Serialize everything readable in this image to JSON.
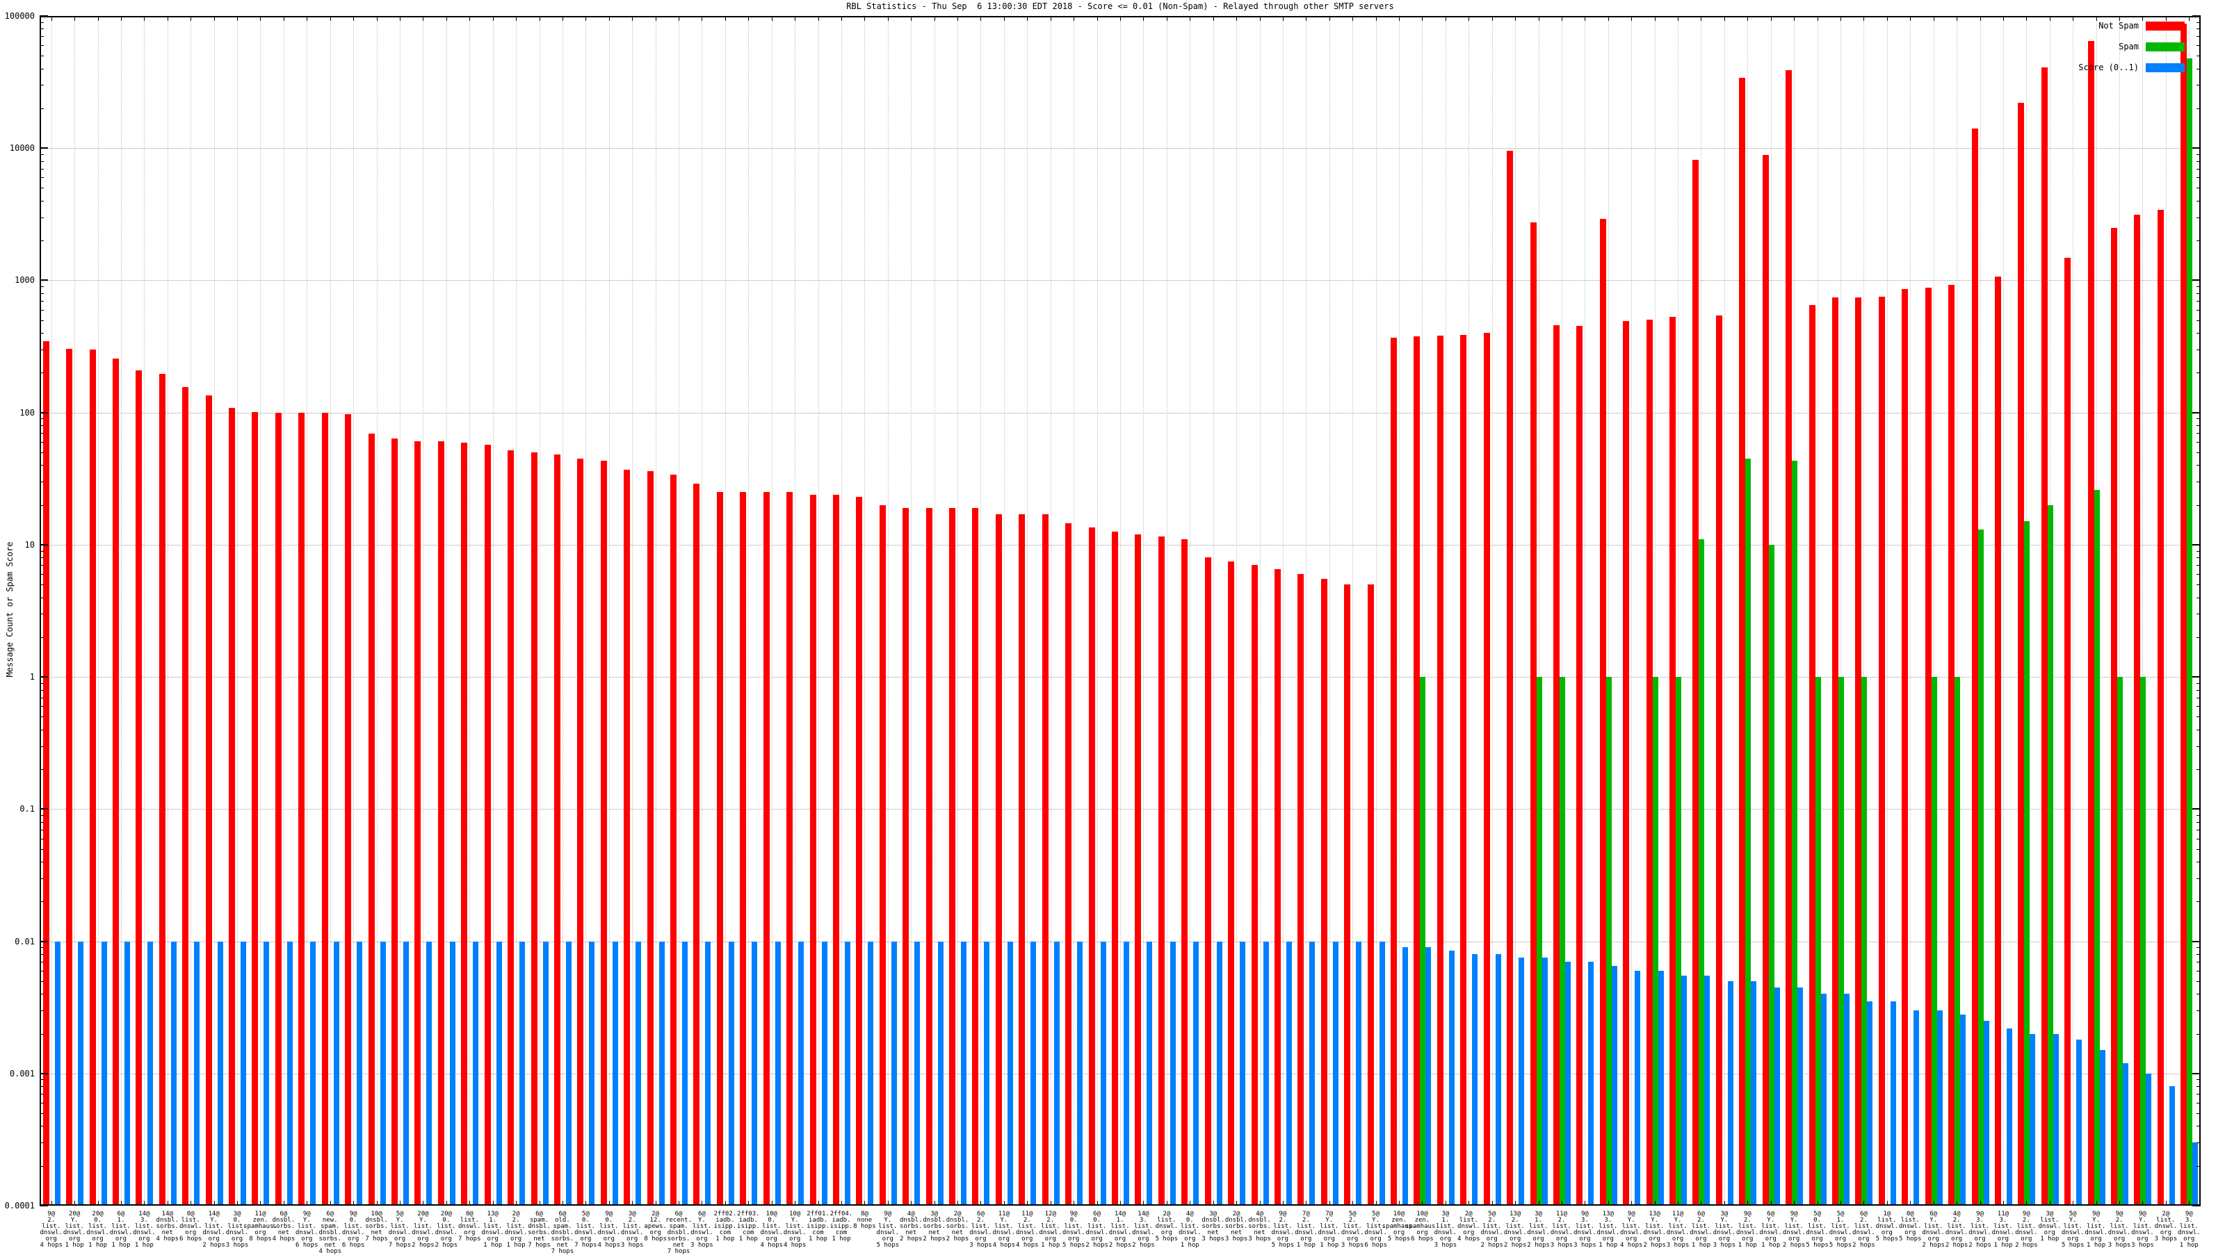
{
  "title": "RBL Statistics - Thu Sep  6 13:00:30 EDT 2018 - Score <= 0.01 (Non-Spam) - Relayed through other SMTP servers",
  "y_axis": {
    "label": "Message Count or Spam Score",
    "ticks": [
      "100000",
      "10000",
      "1000",
      "100",
      "10",
      "1",
      "0.1",
      "0.01",
      "0.001",
      "0.0001"
    ]
  },
  "chart_data": {
    "type": "bar",
    "title": "RBL Statistics - Thu Sep  6 13:00:30 EDT 2018 - Score <= 0.01 (Non-Spam) - Relayed through other SMTP servers",
    "ylabel": "Message Count or Spam Score",
    "y_scale": "log",
    "ylim": [
      0.0001,
      100000
    ],
    "grid": true,
    "legend_position": "top-right",
    "series": [
      {
        "name": "Not Spam",
        "key": "not_spam",
        "color": "#ff0000"
      },
      {
        "name": "Spam",
        "key": "spam",
        "color": "#00b800"
      },
      {
        "name": "Score (0..1)",
        "key": "score",
        "color": "#0080ff"
      }
    ],
    "groups": [
      {
        "label": "9@\n2.\nlist.\ndnswl.\norg\n4 hops",
        "not_spam": 345,
        "spam": null,
        "score": 0.01
      },
      {
        "label": "20@\nY.\nlist.\ndnswl.\norg\n1 hop",
        "not_spam": 302,
        "spam": null,
        "score": 0.01
      },
      {
        "label": "20@\n0.\nlist.\ndnswl.\norg\n1 hop",
        "not_spam": 300,
        "spam": null,
        "score": 0.01
      },
      {
        "label": "6@\n1.\nlist.\ndnswl.\norg\n1 hop",
        "not_spam": 255,
        "spam": null,
        "score": 0.01
      },
      {
        "label": "14@\n3.\nlist.\ndnswl.\norg\n1 hop",
        "not_spam": 208,
        "spam": null,
        "score": 0.01
      },
      {
        "label": "14@\ndnsbl.\nsorbs.\nnet\n4 hops",
        "not_spam": 196,
        "spam": null,
        "score": 0.01
      },
      {
        "label": "0@\nlist.\ndnswl.\norg\n6 hops",
        "not_spam": 156,
        "spam": null,
        "score": 0.01
      },
      {
        "label": "14@\nY.\nlist.\ndnswl.\norg\n2 hops",
        "not_spam": 135,
        "spam": null,
        "score": 0.01
      },
      {
        "label": "3@\n0.\nlist.\ndnswl.\norg\n3 hops",
        "not_spam": 108,
        "spam": null,
        "score": 0.01
      },
      {
        "label": "11@\nzen.\nspamhaus.\norg\n8 hops",
        "not_spam": 101,
        "spam": null,
        "score": 0.01
      },
      {
        "label": "6@\ndnsbl.\nsorbs.\nnet\n4 hops",
        "not_spam": 100,
        "spam": null,
        "score": 0.01
      },
      {
        "label": "9@\nY.\nlist.\ndnswl.\norg\n6 hops",
        "not_spam": 100,
        "spam": null,
        "score": 0.01
      },
      {
        "label": "6@\nnew.\nspam.\ndnsbl.\nsorbs.\nnet\n4 hops",
        "not_spam": 100,
        "spam": null,
        "score": 0.01
      },
      {
        "label": "9@\n0.\nlist.\ndnswl.\norg\n6 hops",
        "not_spam": 97,
        "spam": null,
        "score": 0.01
      },
      {
        "label": "10@\ndnsbl.\nsorbs.\nnet\n7 hops",
        "not_spam": 69,
        "spam": null,
        "score": 0.01
      },
      {
        "label": "5@\nY.\nlist.\ndnswl.\norg\n7 hops",
        "not_spam": 64,
        "spam": null,
        "score": 0.01
      },
      {
        "label": "20@\nY.\nlist.\ndnswl.\norg\n2 hops",
        "not_spam": 61,
        "spam": null,
        "score": 0.01
      },
      {
        "label": "20@\n0.\nlist.\ndnswl.\norg\n2 hops",
        "not_spam": 61,
        "spam": null,
        "score": 0.01
      },
      {
        "label": "0@\nlist.\ndnswl.\norg\n7 hops",
        "not_spam": 59,
        "spam": null,
        "score": 0.01
      },
      {
        "label": "13@\n1.\nlist.\ndnswl.\norg\n1 hop",
        "not_spam": 57,
        "spam": null,
        "score": 0.01
      },
      {
        "label": "2@\n2.\nlist.\ndnswl.\norg\n1 hop",
        "not_spam": 52,
        "spam": null,
        "score": 0.01
      },
      {
        "label": "6@\nspam.\ndnsbl.\nsorbs.\nnet\n7 hops",
        "not_spam": 50,
        "spam": null,
        "score": 0.01
      },
      {
        "label": "6@\nold.\nspam.\ndnsbl.\nsorbs.\nnet\n7 hops",
        "not_spam": 48,
        "spam": null,
        "score": 0.01
      },
      {
        "label": "5@\n0.\nlist.\ndnswl.\norg\n7 hops",
        "not_spam": 45,
        "spam": null,
        "score": 0.01
      },
      {
        "label": "9@\n0.\nlist.\ndnswl.\norg\n4 hops",
        "not_spam": 43,
        "spam": null,
        "score": 0.01
      },
      {
        "label": "3@\n2.\nlist.\ndnswl.\norg\n3 hops",
        "not_spam": 37,
        "spam": null,
        "score": 0.01
      },
      {
        "label": "2@\n12.\napews.\norg\n8 hops",
        "not_spam": 36,
        "spam": null,
        "score": 0.01
      },
      {
        "label": "6@\nrecent.\nspam.\ndnsbl.\nsorbs.\nnet\n7 hops",
        "not_spam": 34,
        "spam": null,
        "score": 0.01
      },
      {
        "label": "6@\nY.\nlist.\ndnswl.\norg\n3 hops",
        "not_spam": 29,
        "spam": null,
        "score": 0.01
      },
      {
        "label": "2ff02.\niadb.\nisipp.\ncom\n1 hop",
        "not_spam": 25,
        "spam": null,
        "score": 0.01
      },
      {
        "label": "2ff03.\niadb.\nisipp.\ncom\n1 hop",
        "not_spam": 25,
        "spam": null,
        "score": 0.01
      },
      {
        "label": "10@\n0.\nlist.\ndnswl.\norg\n4 hops",
        "not_spam": 25,
        "spam": null,
        "score": 0.01
      },
      {
        "label": "10@\nY.\nlist.\ndnswl.\norg\n4 hops",
        "not_spam": 25,
        "spam": null,
        "score": 0.01
      },
      {
        "label": "2ff01.\niadb.\nisipp.\ncom\n1 hop",
        "not_spam": 24,
        "spam": null,
        "score": 0.01
      },
      {
        "label": "2ff04.\niadb.\nisipp.\ncom\n1 hop",
        "not_spam": 24,
        "spam": null,
        "score": 0.01
      },
      {
        "label": "8@\nnone\n8 hops",
        "not_spam": 23,
        "spam": null,
        "score": 0.01
      },
      {
        "label": "9@\nY.\nlist.\ndnswl.\norg\n5 hops",
        "not_spam": 20,
        "spam": null,
        "score": 0.01
      },
      {
        "label": "4@\ndnsbl.\nsorbs.\nnet\n2 hops",
        "not_spam": 19,
        "spam": null,
        "score": 0.01
      },
      {
        "label": "3@\ndnsbl.\nsorbs.\nnet\n2 hops",
        "not_spam": 19,
        "spam": null,
        "score": 0.01
      },
      {
        "label": "2@\ndnsbl.\nsorbs.\nnet\n2 hops",
        "not_spam": 19,
        "spam": null,
        "score": 0.01
      },
      {
        "label": "6@\n2.\nlist.\ndnswl.\norg\n3 hops",
        "not_spam": 19,
        "spam": null,
        "score": 0.01
      },
      {
        "label": "11@\nY.\nlist.\ndnswl.\norg\n4 hops",
        "not_spam": 17,
        "spam": null,
        "score": 0.01
      },
      {
        "label": "11@\n2.\nlist.\ndnswl.\norg\n4 hops",
        "not_spam": 17,
        "spam": null,
        "score": 0.01
      },
      {
        "label": "12@\n2.\nlist.\ndnswl.\norg\n1 hop",
        "not_spam": 17,
        "spam": null,
        "score": 0.01
      },
      {
        "label": "9@\n0.\nlist.\ndnswl.\norg\n5 hops",
        "not_spam": 14.5,
        "spam": null,
        "score": 0.01
      },
      {
        "label": "6@\n0.\nlist.\ndnswl.\norg\n2 hops",
        "not_spam": 13.5,
        "spam": null,
        "score": 0.01
      },
      {
        "label": "14@\n1.\nlist.\ndnswl.\norg\n2 hops",
        "not_spam": 12.5,
        "spam": null,
        "score": 0.01
      },
      {
        "label": "14@\n3.\nlist.\ndnswl.\norg\n2 hops",
        "not_spam": 12,
        "spam": null,
        "score": 0.01
      },
      {
        "label": "2@\nlist.\ndnswl.\norg\n5 hops",
        "not_spam": 11.5,
        "spam": null,
        "score": 0.01
      },
      {
        "label": "4@\n0.\nlist.\ndnswl.\norg\n1 hop",
        "not_spam": 11,
        "spam": null,
        "score": 0.01
      },
      {
        "label": "3@\ndnsbl.\nsorbs.\nnet\n3 hops",
        "not_spam": 8,
        "spam": null,
        "score": 0.01
      },
      {
        "label": "2@\ndnsbl.\nsorbs.\nnet\n3 hops",
        "not_spam": 7.5,
        "spam": null,
        "score": 0.01
      },
      {
        "label": "4@\ndnsbl.\nsorbs.\nnet\n3 hops",
        "not_spam": 7,
        "spam": null,
        "score": 0.01
      },
      {
        "label": "9@\n2.\nlist.\ndnswl.\norg\n5 hops",
        "not_spam": 6.5,
        "spam": null,
        "score": 0.01
      },
      {
        "label": "7@\n2.\nlist.\ndnswl.\norg\n1 hop",
        "not_spam": 6,
        "spam": null,
        "score": 0.01
      },
      {
        "label": "7@\nY.\nlist.\ndnswl.\norg\n1 hop",
        "not_spam": 5.5,
        "spam": null,
        "score": 0.01
      },
      {
        "label": "5@\n2.\nlist.\ndnswl.\norg\n3 hops",
        "not_spam": 5,
        "spam": null,
        "score": 0.01
      },
      {
        "label": "5@\nY.\nlist.\ndnswl.\norg\n6 hops",
        "not_spam": 5,
        "spam": null,
        "score": 0.01
      },
      {
        "label": "10@\nzen.\nspamhaus.\norg\n5 hops",
        "not_spam": 370,
        "spam": null,
        "score": 0.009
      },
      {
        "label": "10@\nzen.\nspamhaus.\norg\n6 hops",
        "not_spam": 375,
        "spam": 1,
        "score": 0.009
      },
      {
        "label": "3@\n1.\nlist.\ndnswl.\norg\n3 hops",
        "not_spam": 380,
        "spam": null,
        "score": 0.0085
      },
      {
        "label": "2@\nlist.\ndnswl.\norg\n4 hops",
        "not_spam": 385,
        "spam": null,
        "score": 0.008
      },
      {
        "label": "5@\n2.\nlist.\ndnswl.\norg\n2 hops",
        "not_spam": 400,
        "spam": null,
        "score": 0.008
      },
      {
        "label": "13@\n2.\nlist.\ndnswl.\norg\n2 hops",
        "not_spam": 9500,
        "spam": null,
        "score": 0.0075
      },
      {
        "label": "3@\n1.\nlist.\ndnswl.\norg\n2 hops",
        "not_spam": 2750,
        "spam": 1,
        "score": 0.0075
      },
      {
        "label": "11@\n2.\nlist.\ndnswl.\norg\n3 hops",
        "not_spam": 455,
        "spam": 1,
        "score": 0.007
      },
      {
        "label": "9@\n3.\nlist.\ndnswl.\norg\n3 hops",
        "not_spam": 450,
        "spam": null,
        "score": 0.007
      },
      {
        "label": "13@\n3.\nlist.\ndnswl.\norg\n1 hop",
        "not_spam": 2900,
        "spam": 1,
        "score": 0.0065
      },
      {
        "label": "9@\nY.\nlist.\ndnswl.\norg\n4 hops",
        "not_spam": 490,
        "spam": null,
        "score": 0.006
      },
      {
        "label": "13@\nY.\nlist.\ndnswl.\norg\n2 hops",
        "not_spam": 505,
        "spam": 1,
        "score": 0.006
      },
      {
        "label": "11@\nY.\nlist.\ndnswl.\norg\n3 hops",
        "not_spam": 530,
        "spam": 1,
        "score": 0.0055
      },
      {
        "label": "6@\n2.\nlist.\ndnswl.\norg\n1 hop",
        "not_spam": 8200,
        "spam": 11,
        "score": 0.0055
      },
      {
        "label": "3@\nY.\nlist.\ndnswl.\norg\n3 hops",
        "not_spam": 540,
        "spam": null,
        "score": 0.005
      },
      {
        "label": "9@\n2.\nlist.\ndnswl.\norg\n1 hop",
        "not_spam": 34000,
        "spam": 45,
        "score": 0.005
      },
      {
        "label": "6@\nY.\nlist.\ndnswl.\norg\n1 hop",
        "not_spam": 8900,
        "spam": 10,
        "score": 0.0045
      },
      {
        "label": "9@\nY.\nlist.\ndnswl.\norg\n2 hops",
        "not_spam": 39000,
        "spam": 43,
        "score": 0.0045
      },
      {
        "label": "5@\n0.\nlist.\ndnswl.\norg\n5 hops",
        "not_spam": 650,
        "spam": 1,
        "score": 0.004
      },
      {
        "label": "5@\n1.\nlist.\ndnswl.\norg\n5 hops",
        "not_spam": 745,
        "spam": 1,
        "score": 0.004
      },
      {
        "label": "6@\n2.\nlist.\ndnswl.\norg\n2 hops",
        "not_spam": 740,
        "spam": 1,
        "score": 0.0035
      },
      {
        "label": "1@\nlist.\ndnswl.\norg\n5 hops",
        "not_spam": 750,
        "spam": null,
        "score": 0.0035
      },
      {
        "label": "0@\nlist.\ndnswl.\norg\n5 hops",
        "not_spam": 860,
        "spam": null,
        "score": 0.003
      },
      {
        "label": "6@\nY.\nlist.\ndnswl.\norg\n2 hops",
        "not_spam": 875,
        "spam": 1,
        "score": 0.003
      },
      {
        "label": "4@\n2.\nlist.\ndnswl.\norg\n2 hops",
        "not_spam": 920,
        "spam": 1,
        "score": 0.0028
      },
      {
        "label": "9@\n3.\nlist.\ndnswl.\norg\n2 hops",
        "not_spam": 14000,
        "spam": 13,
        "score": 0.0025
      },
      {
        "label": "11@\n3.\nlist.\ndnswl.\norg\n1 hop",
        "not_spam": 1070,
        "spam": null,
        "score": 0.0022
      },
      {
        "label": "9@\n2.\nlist.\ndnswl.\norg\n2 hops",
        "not_spam": 22000,
        "spam": 15,
        "score": 0.002
      },
      {
        "label": "3@\nlist.\ndnswl.\norg\n1 hop",
        "not_spam": 41000,
        "spam": 20,
        "score": 0.002
      },
      {
        "label": "5@\nY.\nlist.\ndnswl.\norg\n5 hops",
        "not_spam": 1480,
        "spam": null,
        "score": 0.0018
      },
      {
        "label": "9@\nY.\nlist.\ndnswl.\norg\n1 hop",
        "not_spam": 65000,
        "spam": 26,
        "score": 0.0015
      },
      {
        "label": "9@\n2.\nlist.\ndnswl.\norg\n3 hops",
        "not_spam": 2500,
        "spam": 1,
        "score": 0.0012
      },
      {
        "label": "9@\nY.\nlist.\ndnswl.\norg\n3 hops",
        "not_spam": 3150,
        "spam": 1,
        "score": 0.001
      },
      {
        "label": "2@\nlist.\ndnswl.\norg\n3 hops",
        "not_spam": 3400,
        "spam": null,
        "score": 0.0008
      },
      {
        "label": "9@\n3.\nlist.\ndnswl.\norg\n1 hop",
        "not_spam": 88000,
        "spam": 48000,
        "score": 0.0003
      }
    ]
  }
}
